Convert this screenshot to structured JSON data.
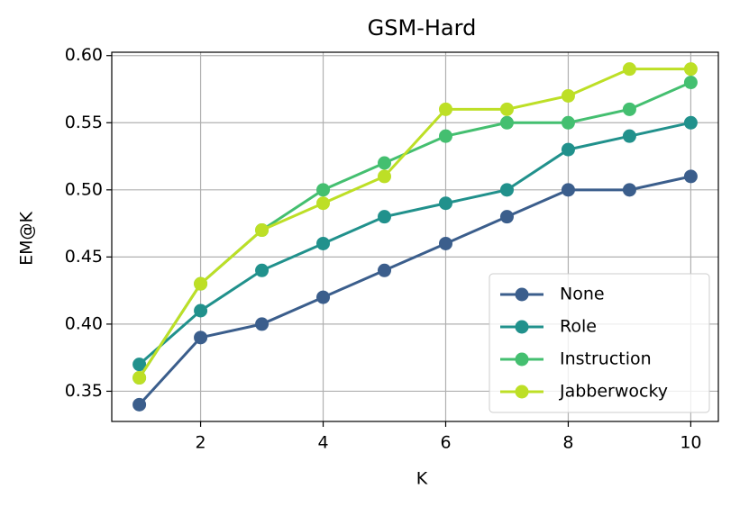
{
  "chart_data": {
    "type": "line",
    "title": "GSM-Hard",
    "x_label": "K",
    "y_label": "EM@K",
    "x": [
      1,
      2,
      3,
      4,
      5,
      6,
      7,
      8,
      9,
      10
    ],
    "series": [
      {
        "name": "None",
        "color": "#3b5e8c",
        "values": [
          0.34,
          0.39,
          0.4,
          0.42,
          0.44,
          0.46,
          0.48,
          0.5,
          0.5,
          0.51
        ]
      },
      {
        "name": "Role",
        "color": "#21918c",
        "values": [
          0.37,
          0.41,
          0.44,
          0.46,
          0.48,
          0.49,
          0.5,
          0.53,
          0.54,
          0.55
        ]
      },
      {
        "name": "Instruction",
        "color": "#44bf70",
        "values": [
          0.36,
          0.43,
          0.47,
          0.5,
          0.52,
          0.54,
          0.55,
          0.55,
          0.56,
          0.58
        ]
      },
      {
        "name": "Jabberwocky",
        "color": "#bddf26",
        "values": [
          0.36,
          0.43,
          0.47,
          0.49,
          0.51,
          0.56,
          0.56,
          0.57,
          0.59,
          0.59
        ]
      }
    ],
    "xlim": [
      0.55,
      10.45
    ],
    "xticks": [
      2,
      4,
      6,
      8,
      10
    ],
    "ylim": [
      0.3275,
      0.6025
    ],
    "yticks": [
      0.35,
      {
        "value": 0.4,
        "label": "0.40"
      },
      0.45,
      {
        "value": 0.5,
        "label": "0.50"
      },
      0.55,
      {
        "value": 0.6,
        "label": "0.60"
      }
    ],
    "grid": true,
    "legend": "lower right"
  }
}
